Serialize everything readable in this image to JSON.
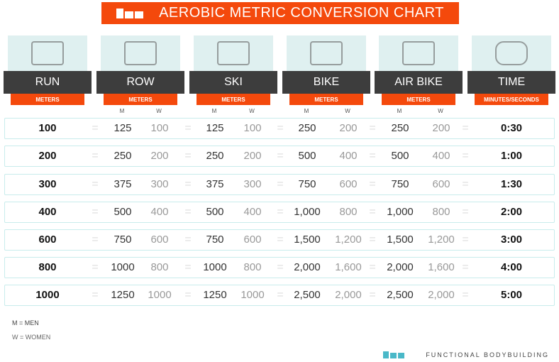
{
  "title": "AEROBIC METRIC CONVERSION CHART",
  "columns": [
    {
      "name": "RUN",
      "unit": "METERS",
      "icon": "treadmill-icon"
    },
    {
      "name": "ROW",
      "unit": "METERS",
      "icon": "rower-icon"
    },
    {
      "name": "SKI",
      "unit": "METERS",
      "icon": "ski-erg-icon"
    },
    {
      "name": "BIKE",
      "unit": "METERS",
      "icon": "stationary-bike-icon"
    },
    {
      "name": "AIR BIKE",
      "unit": "METERS",
      "icon": "air-bike-icon"
    },
    {
      "name": "TIME",
      "unit": "MINUTES/SECONDS",
      "icon": "stopwatch-icon"
    }
  ],
  "m_label": "M",
  "w_label": "W",
  "rows": [
    [
      "100",
      "125",
      "100",
      "125",
      "100",
      "250",
      "200",
      "250",
      "200",
      "0:30"
    ],
    [
      "200",
      "250",
      "200",
      "250",
      "200",
      "500",
      "400",
      "500",
      "400",
      "1:00"
    ],
    [
      "300",
      "375",
      "300",
      "375",
      "300",
      "750",
      "600",
      "750",
      "600",
      "1:30"
    ],
    [
      "400",
      "500",
      "400",
      "500",
      "400",
      "1,000",
      "800",
      "1,000",
      "800",
      "2:00"
    ],
    [
      "600",
      "750",
      "600",
      "750",
      "600",
      "1,500",
      "1,200",
      "1,500",
      "1,200",
      "3:00"
    ],
    [
      "800",
      "1000",
      "800",
      "1000",
      "800",
      "2,000",
      "1,600",
      "2,000",
      "1,600",
      "4:00"
    ],
    [
      "1000",
      "1250",
      "1000",
      "1250",
      "1000",
      "2,500",
      "2,000",
      "2,500",
      "2,000",
      "5:00"
    ]
  ],
  "equals": "=",
  "legend": {
    "men": "M = MEN",
    "women": "W = WOMEN"
  },
  "brand": "FUNCTIONAL BODYBUILDING",
  "colors": {
    "accent": "#f4490c",
    "header": "#3d3d3d",
    "image_bg": "#dff0f0"
  }
}
